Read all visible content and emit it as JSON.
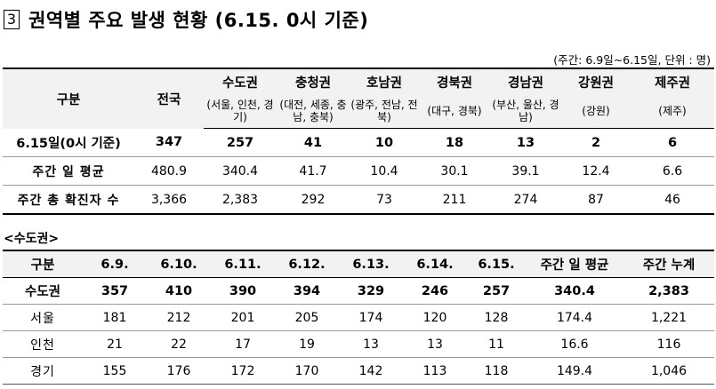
{
  "title": {
    "number": "3",
    "text": "권역별 주요 발생 현황 (6.15. 0시 기준)"
  },
  "unit_note": "(주간: 6.9일~6.15일, 단위 : 명)",
  "table1": {
    "corner": "구분",
    "national": "전국",
    "regions": [
      {
        "name": "수도권",
        "sub": "(서울, 인천, 경기)"
      },
      {
        "name": "충청권",
        "sub": "(대전, 세종, 충남, 충북)"
      },
      {
        "name": "호남권",
        "sub": "(광주, 전남, 전북)"
      },
      {
        "name": "경북권",
        "sub": "(대구, 경북)"
      },
      {
        "name": "경남권",
        "sub": "(부산, 울산, 경남)"
      },
      {
        "name": "강원권",
        "sub": "(강원)"
      },
      {
        "name": "제주권",
        "sub": "(제주)"
      }
    ],
    "rows": [
      {
        "label": "6.15일(0시 기준)",
        "values": [
          "347",
          "257",
          "41",
          "10",
          "18",
          "13",
          "2",
          "6"
        ]
      },
      {
        "label": "주간 일 평균",
        "values": [
          "480.9",
          "340.4",
          "41.7",
          "10.4",
          "30.1",
          "39.1",
          "12.4",
          "6.6"
        ]
      },
      {
        "label": "주간 총 확진자 수",
        "values": [
          "3,366",
          "2,383",
          "292",
          "73",
          "211",
          "274",
          "87",
          "46"
        ]
      }
    ]
  },
  "sub_title": "<수도권>",
  "table2": {
    "headers": [
      "구분",
      "6.9.",
      "6.10.",
      "6.11.",
      "6.12.",
      "6.13.",
      "6.14.",
      "6.15.",
      "주간 일 평균",
      "주간 누계"
    ],
    "total": {
      "label": "수도권",
      "values": [
        "357",
        "410",
        "390",
        "394",
        "329",
        "246",
        "257",
        "340.4",
        "2,383"
      ]
    },
    "rows": [
      {
        "label": "서울",
        "values": [
          "181",
          "212",
          "201",
          "205",
          "174",
          "120",
          "128",
          "174.4",
          "1,221"
        ]
      },
      {
        "label": "인천",
        "values": [
          "21",
          "22",
          "17",
          "19",
          "13",
          "13",
          "11",
          "16.6",
          "116"
        ]
      },
      {
        "label": "경기",
        "values": [
          "155",
          "176",
          "172",
          "170",
          "142",
          "113",
          "118",
          "149.4",
          "1,046"
        ]
      }
    ]
  }
}
